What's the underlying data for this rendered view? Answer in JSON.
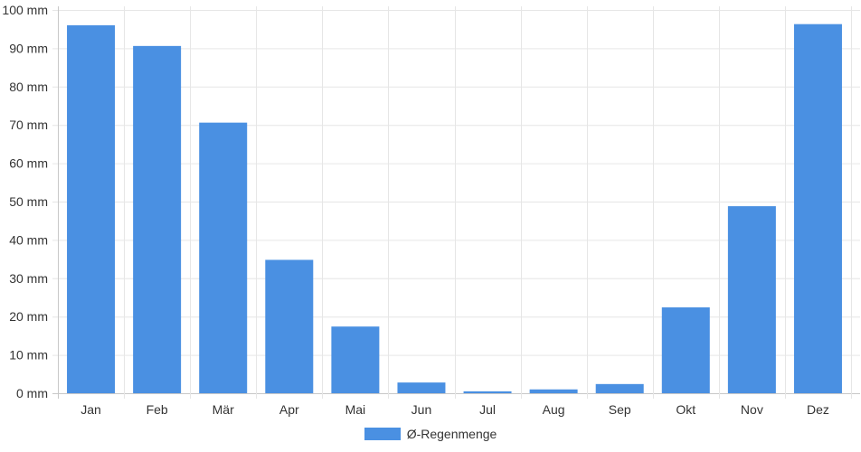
{
  "chart_data": {
    "type": "bar",
    "categories": [
      "Jan",
      "Feb",
      "Mär",
      "Apr",
      "Mai",
      "Jun",
      "Jul",
      "Aug",
      "Sep",
      "Okt",
      "Nov",
      "Dez"
    ],
    "series": [
      {
        "name": "Ø-Regenmenge",
        "values": [
          96,
          90.6,
          70.6,
          34.8,
          17.4,
          2.8,
          0.5,
          1.0,
          2.4,
          22.4,
          48.8,
          96.3
        ]
      }
    ],
    "y_ticks": [
      "0 mm",
      "10 mm",
      "20 mm",
      "30 mm",
      "40 mm",
      "50 mm",
      "60 mm",
      "70 mm",
      "80 mm",
      "90 mm",
      "100 mm"
    ],
    "ylim": [
      0,
      100
    ],
    "grid": true,
    "legend_position": "bottom-center",
    "colors": {
      "bar": "#4a90e2",
      "grid": "#e6e6e6",
      "text": "#333333"
    }
  }
}
